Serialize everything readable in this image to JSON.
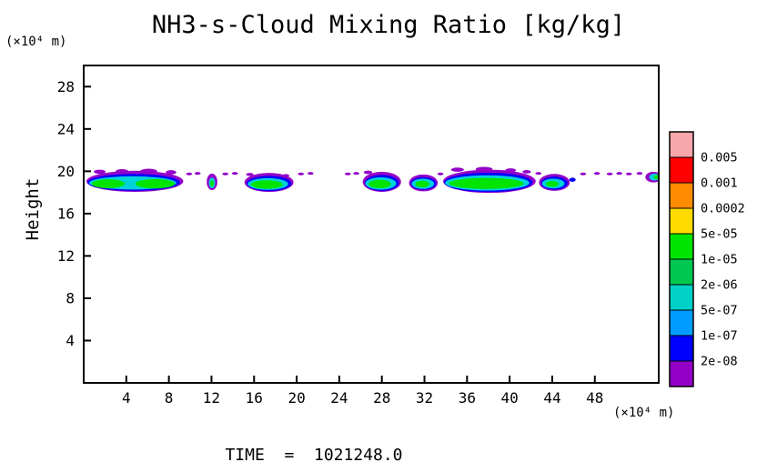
{
  "chart_data": {
    "type": "heatmap",
    "title": "NH3-s-Cloud Mixing Ratio [kg/kg]",
    "ylabel": "Height",
    "y_units": "(×10⁴ m)",
    "x_units": "(×10⁴ m)",
    "time_label": "TIME  =  1021248.0",
    "xlim": [
      0,
      54
    ],
    "ylim": [
      0,
      30
    ],
    "xticks": [
      4,
      8,
      12,
      16,
      20,
      24,
      28,
      32,
      36,
      40,
      44,
      48
    ],
    "yticks": [
      4,
      8,
      12,
      16,
      20,
      24,
      28
    ],
    "grid": false,
    "legend_position": "right",
    "colorbar": {
      "labels": [
        "0.005",
        "0.001",
        "0.0002",
        "5e-05",
        "1e-05",
        "2e-06",
        "5e-07",
        "1e-07",
        "2e-08"
      ],
      "colors": [
        "#f7a6ab",
        "#ff0000",
        "#ff8c00",
        "#ffdc00",
        "#00e400",
        "#00c850",
        "#00d2c8",
        "#009cff",
        "#0000ff",
        "#9400c8"
      ]
    },
    "clouds": {
      "palette": {
        "P": "#9400c8",
        "B": "#0000ff",
        "C": "#00d2dc",
        "G": "#00e400"
      },
      "blobs": [
        [
          4.8,
          19.05,
          4.55,
          1.0,
          "P"
        ],
        [
          4.7,
          18.95,
          4.35,
          0.8,
          "B"
        ],
        [
          4.6,
          18.9,
          4.1,
          0.62,
          "C"
        ],
        [
          2.3,
          18.82,
          1.55,
          0.42,
          "G"
        ],
        [
          6.7,
          18.82,
          1.85,
          0.45,
          "G"
        ],
        [
          1.5,
          19.95,
          0.55,
          0.2,
          "P"
        ],
        [
          3.6,
          20.0,
          0.6,
          0.2,
          "P"
        ],
        [
          6.1,
          20.0,
          0.8,
          0.24,
          "P"
        ],
        [
          8.2,
          19.9,
          0.5,
          0.2,
          "P"
        ],
        [
          9.9,
          19.75,
          0.28,
          0.13,
          "P"
        ],
        [
          10.7,
          19.8,
          0.28,
          0.13,
          "P"
        ],
        [
          12.05,
          19.0,
          0.5,
          0.78,
          "P"
        ],
        [
          12.05,
          18.9,
          0.3,
          0.5,
          "C"
        ],
        [
          12.05,
          18.85,
          0.17,
          0.3,
          "G"
        ],
        [
          13.3,
          19.75,
          0.28,
          0.13,
          "P"
        ],
        [
          14.2,
          19.8,
          0.28,
          0.13,
          "P"
        ],
        [
          17.4,
          18.95,
          2.3,
          0.9,
          "P"
        ],
        [
          17.4,
          18.85,
          2.1,
          0.72,
          "B"
        ],
        [
          17.3,
          18.8,
          1.9,
          0.55,
          "C"
        ],
        [
          17.2,
          18.75,
          1.5,
          0.4,
          "G"
        ],
        [
          15.6,
          19.7,
          0.35,
          0.15,
          "P"
        ],
        [
          19.0,
          19.6,
          0.3,
          0.14,
          "P"
        ],
        [
          20.4,
          19.75,
          0.28,
          0.13,
          "P"
        ],
        [
          21.3,
          19.8,
          0.28,
          0.13,
          "P"
        ],
        [
          24.8,
          19.75,
          0.28,
          0.13,
          "P"
        ],
        [
          25.6,
          19.8,
          0.28,
          0.13,
          "P"
        ],
        [
          28.0,
          19.0,
          1.8,
          0.95,
          "P"
        ],
        [
          28.0,
          18.9,
          1.6,
          0.75,
          "B"
        ],
        [
          27.9,
          18.85,
          1.45,
          0.58,
          "C"
        ],
        [
          27.8,
          18.8,
          1.05,
          0.4,
          "G"
        ],
        [
          26.7,
          19.9,
          0.4,
          0.16,
          "P"
        ],
        [
          31.9,
          18.9,
          1.35,
          0.8,
          "P"
        ],
        [
          31.9,
          18.85,
          1.2,
          0.6,
          "B"
        ],
        [
          31.85,
          18.82,
          1.05,
          0.48,
          "C"
        ],
        [
          31.8,
          18.8,
          0.65,
          0.32,
          "G"
        ],
        [
          33.5,
          19.75,
          0.28,
          0.13,
          "P"
        ],
        [
          38.1,
          19.05,
          4.35,
          1.1,
          "P"
        ],
        [
          38.0,
          18.95,
          4.15,
          0.92,
          "B"
        ],
        [
          37.9,
          18.9,
          3.95,
          0.72,
          "C"
        ],
        [
          37.8,
          18.85,
          3.5,
          0.52,
          "G"
        ],
        [
          35.1,
          20.15,
          0.6,
          0.2,
          "P"
        ],
        [
          37.6,
          20.2,
          0.8,
          0.22,
          "P"
        ],
        [
          40.1,
          20.1,
          0.5,
          0.18,
          "P"
        ],
        [
          41.6,
          19.95,
          0.4,
          0.16,
          "P"
        ],
        [
          42.7,
          19.8,
          0.28,
          0.13,
          "P"
        ],
        [
          44.2,
          18.95,
          1.45,
          0.8,
          "P"
        ],
        [
          44.2,
          18.88,
          1.25,
          0.62,
          "B"
        ],
        [
          44.1,
          18.84,
          1.05,
          0.46,
          "C"
        ],
        [
          44.0,
          18.8,
          0.6,
          0.28,
          "G"
        ],
        [
          45.9,
          19.2,
          0.3,
          0.2,
          "B"
        ],
        [
          46.9,
          19.75,
          0.28,
          0.13,
          "P"
        ],
        [
          48.2,
          19.8,
          0.28,
          0.13,
          "P"
        ],
        [
          49.4,
          19.75,
          0.28,
          0.13,
          "P"
        ],
        [
          50.3,
          19.8,
          0.28,
          0.13,
          "P"
        ],
        [
          51.2,
          19.75,
          0.28,
          0.13,
          "P"
        ],
        [
          52.2,
          19.8,
          0.28,
          0.13,
          "P"
        ],
        [
          53.5,
          19.45,
          0.75,
          0.5,
          "P"
        ],
        [
          53.6,
          19.45,
          0.5,
          0.32,
          "C"
        ],
        [
          53.8,
          19.45,
          0.25,
          0.18,
          "G"
        ]
      ]
    }
  }
}
